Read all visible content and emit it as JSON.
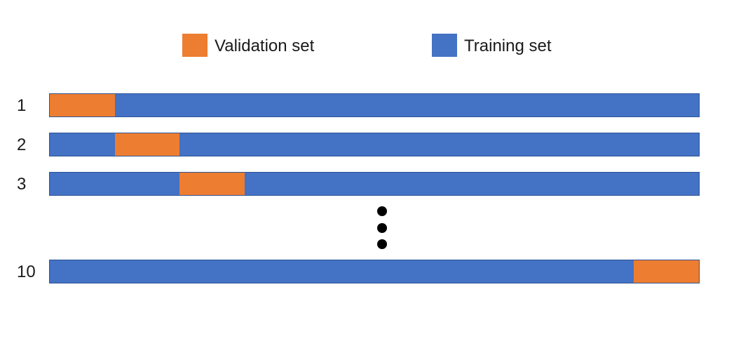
{
  "colors": {
    "validation": "#ED7D31",
    "training": "#4472C4"
  },
  "legend": {
    "validation_label": "Validation set",
    "training_label": "Training set"
  },
  "folds": [
    {
      "label": "1",
      "validation_fold": 1
    },
    {
      "label": "2",
      "validation_fold": 2
    },
    {
      "label": "3",
      "validation_fold": 3
    },
    {
      "label": "10",
      "validation_fold": 10
    }
  ],
  "total_folds": 10
}
